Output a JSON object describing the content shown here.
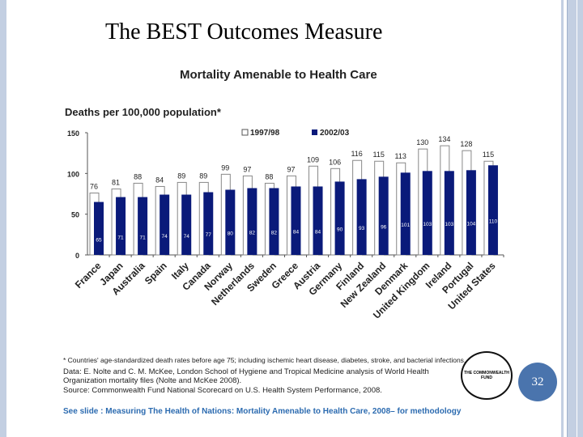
{
  "slide": {
    "title": "The BEST Outcomes Measure",
    "page_number": "32"
  },
  "chart_data": {
    "type": "bar",
    "title": "Mortality Amenable to Health Care",
    "ylabel": "Deaths per 100,000 population*",
    "ylim": [
      0,
      150
    ],
    "yticks": [
      "0",
      "50",
      "100",
      "150"
    ],
    "categories": [
      "France",
      "Japan",
      "Australia",
      "Spain",
      "Italy",
      "Canada",
      "Norway",
      "Netherlands",
      "Sweden",
      "Greece",
      "Austria",
      "Germany",
      "Finland",
      "New Zealand",
      "Denmark",
      "United Kingdom",
      "Ireland",
      "Portugal",
      "United States"
    ],
    "series": [
      {
        "name": "1997/98",
        "color": "#ffffff",
        "values": [
          76,
          81,
          88,
          84,
          89,
          89,
          99,
          97,
          88,
          97,
          109,
          106,
          116,
          115,
          113,
          130,
          134,
          128,
          115
        ]
      },
      {
        "name": "2002/03",
        "color": "#0a1a7a",
        "values": [
          65,
          71,
          71,
          74,
          74,
          77,
          80,
          82,
          82,
          84,
          84,
          90,
          93,
          96,
          101,
          103,
          103,
          104,
          110
        ]
      }
    ],
    "legend": "top-right",
    "grid": false
  },
  "footnotes": {
    "asterisk": "* Countries' age-standardized death rates before age 75; including ischemic heart disease, diabetes, stroke, and bacterial infections.",
    "data": "Data: E. Nolte and C. M. McKee, London School of Hygiene and Tropical Medicine analysis of World Health Organization mortality files (Nolte and McKee 2008).",
    "source": "Source: Commonwealth Fund National Scorecard on U.S. Health System Performance, 2008.",
    "logo": "THE COMMONWEALTH FUND",
    "see_slide": "See slide : Measuring The Health of Nations: Mortality Amenable to Health Care, 2008– for methodology"
  }
}
